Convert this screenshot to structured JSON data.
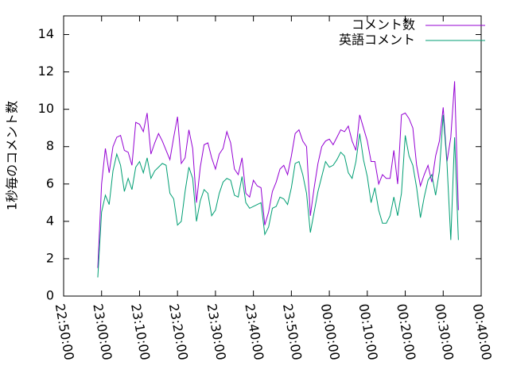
{
  "chart_data": {
    "type": "line",
    "ylabel": "1秒毎のコメント数",
    "x": [
      9,
      10,
      11,
      12,
      13,
      14,
      15,
      16,
      17,
      18,
      19,
      20,
      21,
      22,
      23,
      24,
      25,
      26,
      27,
      28,
      29,
      30,
      31,
      32,
      33,
      34,
      35,
      36,
      37,
      38,
      39,
      40,
      41,
      42,
      43,
      44,
      45,
      46,
      47,
      48,
      49,
      50,
      51,
      52,
      53,
      54,
      55,
      56,
      57,
      58,
      59,
      60,
      61,
      62,
      63,
      64,
      65,
      66,
      67,
      68,
      69,
      70,
      71,
      72,
      73,
      74,
      75,
      76,
      77,
      78,
      79,
      80,
      81,
      82,
      83,
      84,
      85,
      86,
      87,
      88,
      89,
      90,
      91,
      92,
      93,
      94,
      95,
      96,
      97,
      98,
      99,
      100,
      101,
      102,
      103,
      104
    ],
    "series": [
      {
        "name": "コメント数",
        "color": "#9400d3",
        "values": [
          1.5,
          6.0,
          7.9,
          6.6,
          8.0,
          8.5,
          8.6,
          7.8,
          7.7,
          7.0,
          9.3,
          9.2,
          8.8,
          9.8,
          7.6,
          8.2,
          8.7,
          8.3,
          7.8,
          7.3,
          8.5,
          9.6,
          7.1,
          7.4,
          8.9,
          7.9,
          5.0,
          6.9,
          8.1,
          8.2,
          7.4,
          6.8,
          7.6,
          7.9,
          8.8,
          8.2,
          6.8,
          6.5,
          7.4,
          5.5,
          5.3,
          6.2,
          5.9,
          5.8,
          3.8,
          4.5,
          5.6,
          6.1,
          6.8,
          7.0,
          6.5,
          7.5,
          8.7,
          8.9,
          8.3,
          8.0,
          4.3,
          5.8,
          7.1,
          8.0,
          8.3,
          8.4,
          8.1,
          8.5,
          8.9,
          8.8,
          9.1,
          8.3,
          7.8,
          9.7,
          9.0,
          8.3,
          7.2,
          7.2,
          6.0,
          6.5,
          6.3,
          6.3,
          7.8,
          6.0,
          9.7,
          9.8,
          9.5,
          9.0,
          7.0,
          5.9,
          6.5,
          7.0,
          6.1,
          7.5,
          8.3,
          10.1,
          7.2,
          8.5,
          11.5,
          4.6
        ]
      },
      {
        "name": "英語コメント",
        "color": "#009e73",
        "values": [
          1.0,
          4.5,
          5.4,
          4.9,
          6.7,
          7.6,
          7.0,
          5.6,
          6.3,
          5.7,
          6.9,
          7.2,
          6.6,
          7.4,
          6.3,
          6.7,
          6.9,
          7.1,
          7.0,
          5.5,
          5.2,
          3.8,
          4.0,
          5.6,
          6.9,
          6.3,
          4.0,
          5.1,
          5.7,
          5.5,
          4.3,
          4.6,
          5.5,
          6.1,
          6.3,
          6.2,
          5.4,
          5.3,
          6.4,
          5.0,
          4.7,
          4.8,
          4.9,
          5.0,
          3.3,
          3.7,
          4.7,
          4.8,
          5.3,
          5.2,
          4.9,
          5.8,
          7.1,
          7.2,
          6.5,
          5.5,
          3.4,
          4.5,
          5.6,
          6.4,
          7.2,
          6.9,
          7.0,
          7.3,
          7.7,
          7.5,
          6.6,
          6.3,
          7.2,
          8.7,
          7.3,
          6.4,
          5.0,
          5.8,
          4.6,
          3.9,
          3.9,
          4.3,
          5.3,
          4.3,
          5.5,
          8.6,
          7.5,
          7.0,
          5.8,
          4.2,
          5.3,
          6.2,
          6.5,
          5.4,
          6.7,
          9.7,
          7.1,
          3.0,
          8.5,
          3.0
        ]
      }
    ],
    "xlim": [
      0,
      110
    ],
    "xticks": [
      {
        "value": 0,
        "label": "22:50:00"
      },
      {
        "value": 10,
        "label": "23:00:00"
      },
      {
        "value": 20,
        "label": "23:10:00"
      },
      {
        "value": 30,
        "label": "23:20:00"
      },
      {
        "value": 40,
        "label": "23:30:00"
      },
      {
        "value": 50,
        "label": "23:40:00"
      },
      {
        "value": 60,
        "label": "23:50:00"
      },
      {
        "value": 70,
        "label": "00:00:00"
      },
      {
        "value": 80,
        "label": "00:10:00"
      },
      {
        "value": 90,
        "label": "00:20:00"
      },
      {
        "value": 100,
        "label": "00:30:00"
      },
      {
        "value": 110,
        "label": "00:40:00"
      }
    ],
    "ylim": [
      0,
      15
    ],
    "yticks": [
      0,
      2,
      4,
      6,
      8,
      10,
      12,
      14
    ],
    "legend": "top-right"
  }
}
